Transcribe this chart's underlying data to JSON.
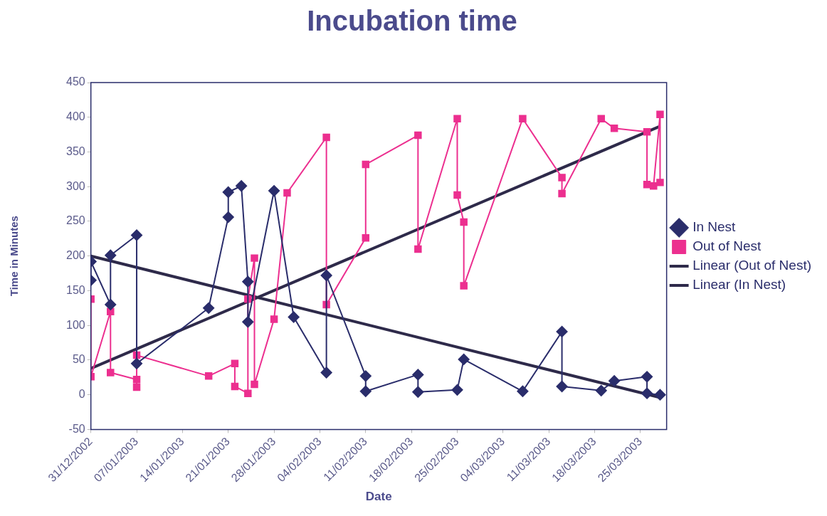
{
  "chart_data": {
    "type": "line",
    "title": "Incubation time",
    "xlabel": "Date",
    "ylabel": "Time in Minutes",
    "xlim": [
      "2002-12-31",
      "2003-03-29"
    ],
    "xticks": [
      {
        "value": "2002-12-31",
        "label": "31/12/2002"
      },
      {
        "value": "2003-01-07",
        "label": "07/01/2003"
      },
      {
        "value": "2003-01-14",
        "label": "14/01/2003"
      },
      {
        "value": "2003-01-21",
        "label": "21/01/2003"
      },
      {
        "value": "2003-01-28",
        "label": "28/01/2003"
      },
      {
        "value": "2003-02-04",
        "label": "04/02/2003"
      },
      {
        "value": "2003-02-11",
        "label": "11/02/2003"
      },
      {
        "value": "2003-02-18",
        "label": "18/02/2003"
      },
      {
        "value": "2003-02-25",
        "label": "25/02/2003"
      },
      {
        "value": "2003-03-04",
        "label": "04/03/2003"
      },
      {
        "value": "2003-03-11",
        "label": "11/03/2003"
      },
      {
        "value": "2003-03-18",
        "label": "18/03/2003"
      },
      {
        "value": "2003-03-25",
        "label": "25/03/2003"
      }
    ],
    "ylim": [
      -50,
      450
    ],
    "yticks": [
      -50,
      0,
      50,
      100,
      150,
      200,
      250,
      300,
      350,
      400,
      450
    ],
    "legend": "right",
    "series": [
      {
        "name": "In Nest",
        "color": "#2a2d6b",
        "marker": "diamond",
        "x": [
          "2002-12-31",
          "2002-12-31",
          "2003-01-03",
          "2003-01-03",
          "2003-01-07",
          "2003-01-07",
          "2003-01-18",
          "2003-01-21",
          "2003-01-21",
          "2003-01-23",
          "2003-01-24",
          "2003-01-24",
          "2003-01-28",
          "2003-01-31",
          "2003-02-05",
          "2003-02-05",
          "2003-02-11",
          "2003-02-11",
          "2003-02-19",
          "2003-02-19",
          "2003-02-25",
          "2003-02-26",
          "2003-03-07",
          "2003-03-13",
          "2003-03-13",
          "2003-03-19",
          "2003-03-21",
          "2003-03-26",
          "2003-03-26",
          "2003-03-28"
        ],
        "values": [
          165,
          192,
          130,
          201,
          230,
          45,
          125,
          256,
          292,
          301,
          163,
          105,
          294,
          112,
          32,
          172,
          27,
          5,
          29,
          4,
          7,
          51,
          5,
          91,
          12,
          6,
          20,
          26,
          2,
          0
        ]
      },
      {
        "name": "Out of Nest",
        "color": "#ec2f8f",
        "marker": "square",
        "x": [
          "2002-12-31",
          "2002-12-31",
          "2003-01-03",
          "2003-01-03",
          "2003-01-07",
          "2003-01-07",
          "2003-01-07",
          "2003-01-18",
          "2003-01-22",
          "2003-01-22",
          "2003-01-24",
          "2003-01-24",
          "2003-01-25",
          "2003-01-25",
          "2003-01-28",
          "2003-01-30",
          "2003-02-05",
          "2003-02-05",
          "2003-02-11",
          "2003-02-11",
          "2003-02-19",
          "2003-02-19",
          "2003-02-25",
          "2003-02-25",
          "2003-02-26",
          "2003-02-26",
          "2003-03-07",
          "2003-03-13",
          "2003-03-13",
          "2003-03-19",
          "2003-03-21",
          "2003-03-26",
          "2003-03-26",
          "2003-03-27",
          "2003-03-28",
          "2003-03-28"
        ],
        "values": [
          138,
          26,
          120,
          32,
          22,
          11,
          57,
          27,
          45,
          12,
          2,
          138,
          197,
          15,
          109,
          291,
          371,
          130,
          226,
          332,
          374,
          210,
          398,
          288,
          249,
          157,
          398,
          313,
          290,
          398,
          384,
          379,
          303,
          301,
          404,
          306
        ]
      },
      {
        "name": "Linear (Out of Nest)",
        "color": "#2e2a4a",
        "marker": "none",
        "x": [
          "2002-12-31",
          "2003-03-28"
        ],
        "values": [
          38,
          387
        ]
      },
      {
        "name": "Linear (In Nest)",
        "color": "#2e2a4a",
        "marker": "none",
        "x": [
          "2002-12-31",
          "2003-03-28"
        ],
        "values": [
          200,
          -4
        ]
      }
    ]
  }
}
